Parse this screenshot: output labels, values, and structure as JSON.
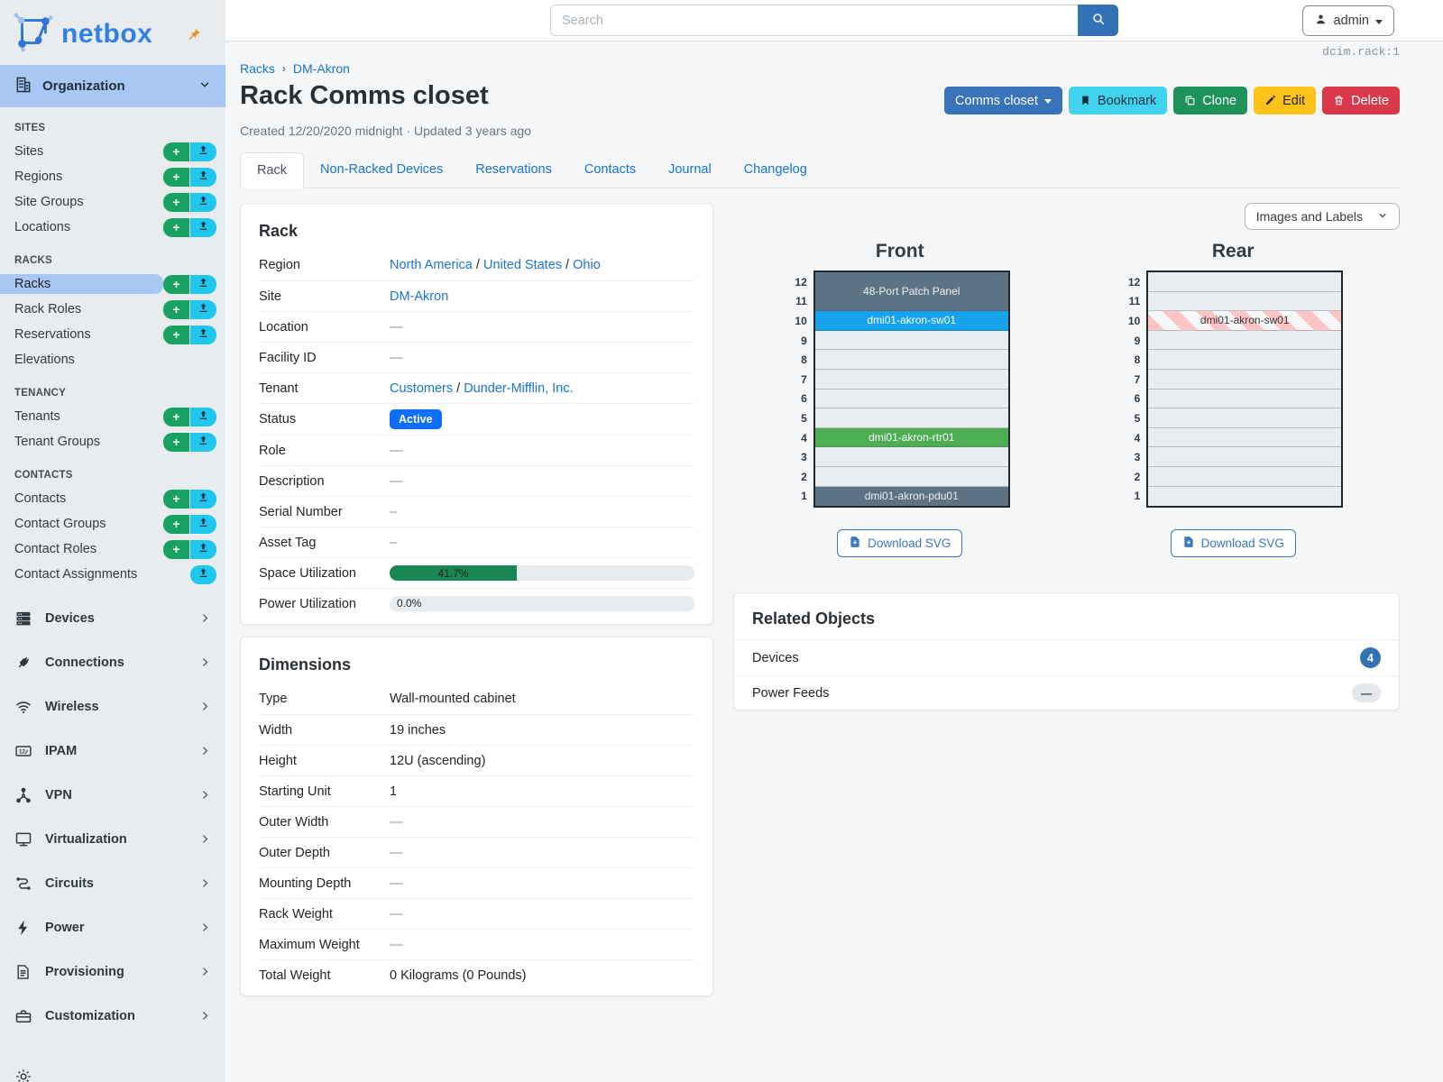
{
  "brand": {
    "logo_text": "netbox"
  },
  "topbar": {
    "search_placeholder": "Search",
    "user_label": "admin"
  },
  "sidebar": {
    "active_group": {
      "label": "Organization",
      "icon": "building-icon"
    },
    "sections": [
      {
        "title": "SITES",
        "items": [
          {
            "label": "Sites",
            "add": true,
            "import": true
          },
          {
            "label": "Regions",
            "add": true,
            "import": true
          },
          {
            "label": "Site Groups",
            "add": true,
            "import": true
          },
          {
            "label": "Locations",
            "add": true,
            "import": true
          }
        ]
      },
      {
        "title": "RACKS",
        "items": [
          {
            "label": "Racks",
            "active": true,
            "add": true,
            "import": true
          },
          {
            "label": "Rack Roles",
            "add": true,
            "import": true
          },
          {
            "label": "Reservations",
            "add": true,
            "import": true
          },
          {
            "label": "Elevations"
          }
        ]
      },
      {
        "title": "TENANCY",
        "items": [
          {
            "label": "Tenants",
            "add": true,
            "import": true
          },
          {
            "label": "Tenant Groups",
            "add": true,
            "import": true
          }
        ]
      },
      {
        "title": "CONTACTS",
        "items": [
          {
            "label": "Contacts",
            "add": true,
            "import": true
          },
          {
            "label": "Contact Groups",
            "add": true,
            "import": true
          },
          {
            "label": "Contact Roles",
            "add": true,
            "import": true
          },
          {
            "label": "Contact Assignments",
            "import": true
          }
        ]
      }
    ],
    "groups": [
      {
        "label": "Devices",
        "icon": "server-icon"
      },
      {
        "label": "Connections",
        "icon": "plug-icon"
      },
      {
        "label": "Wireless",
        "icon": "wifi-icon"
      },
      {
        "label": "IPAM",
        "icon": "ipam-icon"
      },
      {
        "label": "VPN",
        "icon": "vpn-icon"
      },
      {
        "label": "Virtualization",
        "icon": "monitor-icon"
      },
      {
        "label": "Circuits",
        "icon": "circuits-icon"
      },
      {
        "label": "Power",
        "icon": "lightning-icon"
      },
      {
        "label": "Provisioning",
        "icon": "document-icon"
      },
      {
        "label": "Customization",
        "icon": "toolbox-icon"
      }
    ],
    "partial_group_icon": "gear-icon"
  },
  "page": {
    "breadcrumb": [
      "Racks",
      "DM-Akron"
    ],
    "object_ref": "dcim.rack:1",
    "title": "Rack Comms closet",
    "meta": "Created 12/20/2020 midnight · Updated 3 years ago",
    "actions": {
      "role": "Comms closet",
      "bookmark": "Bookmark",
      "clone": "Clone",
      "edit": "Edit",
      "delete": "Delete"
    }
  },
  "tabs": [
    {
      "label": "Rack",
      "active": true
    },
    {
      "label": "Non-Racked Devices"
    },
    {
      "label": "Reservations"
    },
    {
      "label": "Contacts"
    },
    {
      "label": "Journal"
    },
    {
      "label": "Changelog"
    }
  ],
  "rack_card": {
    "title": "Rack",
    "rows": [
      {
        "label": "Region",
        "type": "links",
        "links": [
          "North America",
          "United States",
          "Ohio"
        ],
        "separator": " / "
      },
      {
        "label": "Site",
        "type": "links",
        "links": [
          "DM-Akron"
        ],
        "separator": " / "
      },
      {
        "label": "Location",
        "type": "text",
        "value": "—",
        "muted": true
      },
      {
        "label": "Facility ID",
        "type": "text",
        "value": "—",
        "muted": true
      },
      {
        "label": "Tenant",
        "type": "links",
        "links": [
          "Customers",
          "Dunder-Mifflin, Inc."
        ],
        "separator": " / "
      },
      {
        "label": "Status",
        "type": "badge",
        "value": "Active"
      },
      {
        "label": "Role",
        "type": "text",
        "value": "—",
        "muted": true
      },
      {
        "label": "Description",
        "type": "text",
        "value": "—",
        "muted": true
      },
      {
        "label": "Serial Number",
        "type": "text",
        "value": "–",
        "muted": true
      },
      {
        "label": "Asset Tag",
        "type": "text",
        "value": "–",
        "muted": true
      },
      {
        "label": "Space Utilization",
        "type": "progress",
        "percent": 41.7,
        "text": "41.7%"
      },
      {
        "label": "Power Utilization",
        "type": "progress",
        "percent": 0,
        "text": "0.0%"
      }
    ]
  },
  "dimensions_card": {
    "title": "Dimensions",
    "rows": [
      {
        "label": "Type",
        "type": "text",
        "value": "Wall-mounted cabinet"
      },
      {
        "label": "Width",
        "type": "text",
        "value": "19 inches"
      },
      {
        "label": "Height",
        "type": "text",
        "value": "12U (ascending)"
      },
      {
        "label": "Starting Unit",
        "type": "text",
        "value": "1"
      },
      {
        "label": "Outer Width",
        "type": "text",
        "value": "—",
        "muted": true
      },
      {
        "label": "Outer Depth",
        "type": "text",
        "value": "—",
        "muted": true
      },
      {
        "label": "Mounting Depth",
        "type": "text",
        "value": "—",
        "muted": true
      },
      {
        "label": "Rack Weight",
        "type": "text",
        "value": "—",
        "muted": true
      },
      {
        "label": "Maximum Weight",
        "type": "text",
        "value": "—",
        "muted": true
      },
      {
        "label": "Total Weight",
        "type": "text",
        "value": "0 Kilograms (0 Pounds)"
      }
    ]
  },
  "elevations": {
    "view_select": "Images and Labels",
    "download_label": "Download SVG",
    "unit_numbers": [
      12,
      11,
      10,
      9,
      8,
      7,
      6,
      5,
      4,
      3,
      2,
      1
    ],
    "front": {
      "title": "Front",
      "blocks": [
        {
          "units": 2,
          "label": "48-Port Patch Panel",
          "bg": "#5d7282",
          "fg": "#eef2f5"
        },
        {
          "units": 1,
          "label": "dmi01-akron-sw01",
          "bg": "#16a2ec",
          "fg": "#ffffff"
        },
        {
          "units": 1
        },
        {
          "units": 1
        },
        {
          "units": 1
        },
        {
          "units": 1
        },
        {
          "units": 1
        },
        {
          "units": 1,
          "label": "dmi01-akron-rtr01",
          "bg": "#4cae50",
          "fg": "#ffffff"
        },
        {
          "units": 1
        },
        {
          "units": 1
        },
        {
          "units": 1,
          "label": "dmi01-akron-pdu01",
          "bg": "#5d7282",
          "fg": "#eef2f5"
        }
      ]
    },
    "rear": {
      "title": "Rear",
      "blocks": [
        {
          "units": 1
        },
        {
          "units": 1
        },
        {
          "units": 1,
          "label": "dmi01-akron-sw01",
          "striped": true,
          "fg": "#343a40"
        },
        {
          "units": 1
        },
        {
          "units": 1
        },
        {
          "units": 1
        },
        {
          "units": 1
        },
        {
          "units": 1
        },
        {
          "units": 1
        },
        {
          "units": 1
        },
        {
          "units": 1
        },
        {
          "units": 1
        }
      ]
    }
  },
  "related": {
    "title": "Related Objects",
    "rows": [
      {
        "label": "Devices",
        "count": "4",
        "style": "primary"
      },
      {
        "label": "Power Feeds",
        "count": "—",
        "style": "muted"
      }
    ]
  }
}
